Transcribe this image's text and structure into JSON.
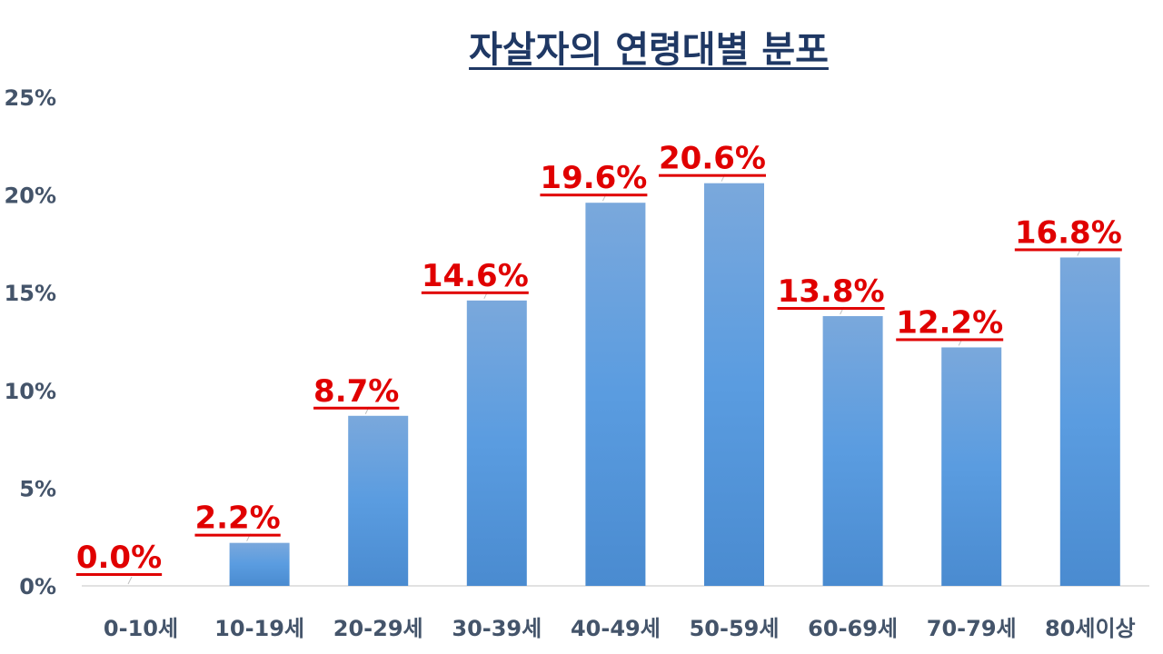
{
  "chart_data": {
    "type": "bar",
    "title": "자살자의 연령대별 분포",
    "categories": [
      "0-10세",
      "10-19세",
      "20-29세",
      "30-39세",
      "40-49세",
      "50-59세",
      "60-69세",
      "70-79세",
      "80세이상"
    ],
    "values": [
      0.0,
      2.2,
      8.7,
      14.6,
      19.6,
      20.6,
      13.8,
      12.2,
      16.8
    ],
    "data_labels": [
      "0.0%",
      "2.2%",
      "8.7%",
      "14.6%",
      "19.6%",
      "20.6%",
      "13.8%",
      "12.2%",
      "16.8%"
    ],
    "y_ticks": [
      "0%",
      "5%",
      "10%",
      "15%",
      "20%",
      "25%"
    ],
    "ylim": [
      0,
      25
    ],
    "xlabel": "",
    "ylabel": "",
    "grid": false,
    "legend": "none",
    "colors": {
      "bar_top": "#7aa8dc",
      "bar_bottom": "#4a8bd0",
      "data_label": "#e00000",
      "title": "#1f3864",
      "axis_text": "#44546a"
    }
  }
}
